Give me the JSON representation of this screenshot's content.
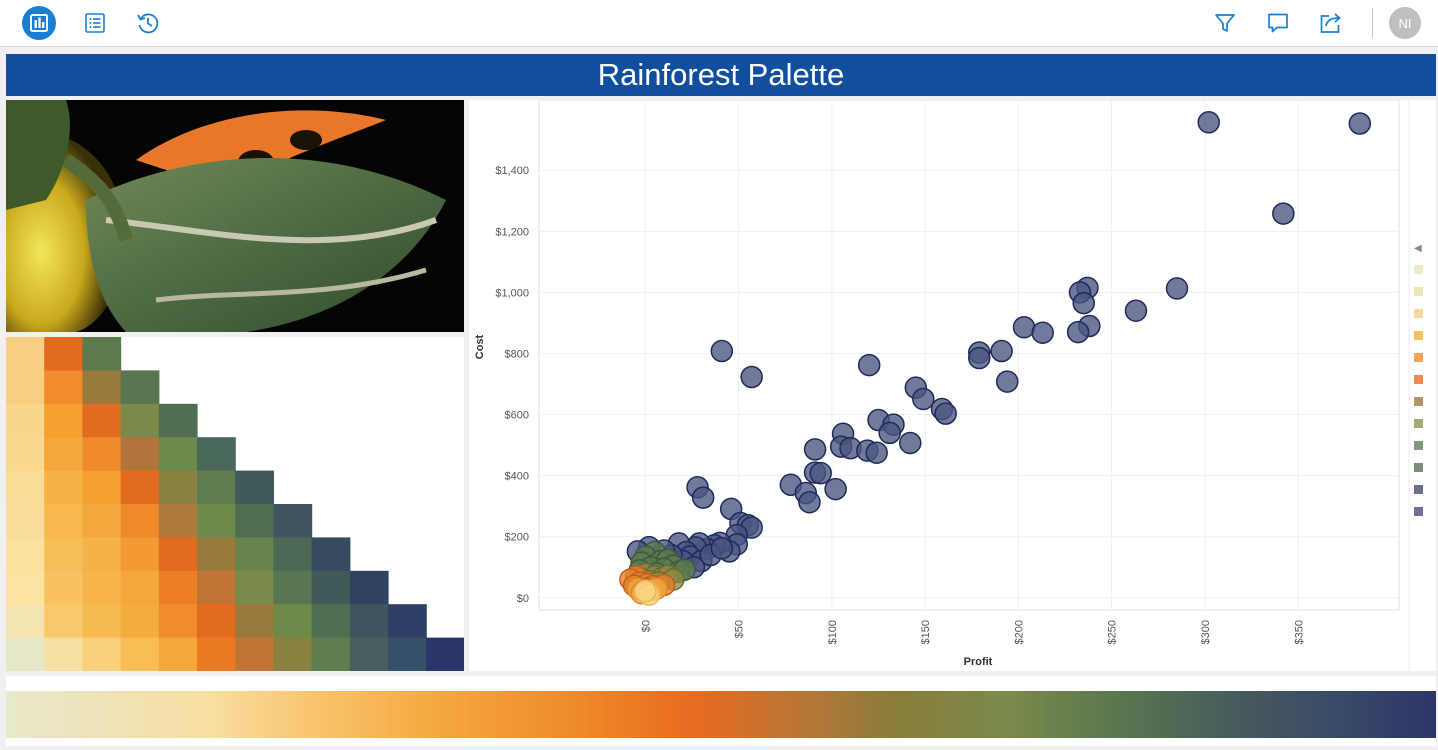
{
  "toolbar": {
    "user_initials": "NI"
  },
  "icons": {
    "dashboard": "bar-chart-icon",
    "list": "list-icon",
    "history": "history-icon",
    "filter": "filter-icon",
    "comment": "comment-icon",
    "share": "share-icon"
  },
  "colors": {
    "accent": "#1a7fd4",
    "title_bg": "#114f9e",
    "point_fill": "#4a5580",
    "point_stroke": "#1e2a5a"
  },
  "dashboard": {
    "title": "Rainforest Palette"
  },
  "heatmap": {
    "rows": [
      [
        "#f8cf80",
        "#e36b20",
        "#5c7a4c"
      ],
      [
        "#f8cf80",
        "#f08c2a",
        "#9a7a3c",
        "#587652"
      ],
      [
        "#f9d68d",
        "#f3a030",
        "#e36b20",
        "#7a8a4a",
        "#4f6e52"
      ],
      [
        "#f9d98f",
        "#f5a83a",
        "#ef8a2a",
        "#b2743a",
        "#6b8a4c",
        "#48685a"
      ],
      [
        "#fadc95",
        "#f6b147",
        "#f3a030",
        "#e36b20",
        "#8a8040",
        "#5f7e4f",
        "#3f5a58"
      ],
      [
        "#fbdd99",
        "#f7b850",
        "#f5a83a",
        "#ee8a2a",
        "#ae7a3a",
        "#6e8a4a",
        "#4f6e52",
        "#3f5660"
      ],
      [
        "#fbe19e",
        "#f7bd58",
        "#f6b147",
        "#f39a30",
        "#e36b20",
        "#9a7a3c",
        "#66844c",
        "#4b6a55",
        "#374a60"
      ],
      [
        "#fbe3a2",
        "#f8c35f",
        "#f6b44a",
        "#f5a83a",
        "#eb7e26",
        "#c07436",
        "#7a8a4a",
        "#587652",
        "#3f5a58",
        "#2f4260"
      ],
      [
        "#f4e4af",
        "#f9c86a",
        "#f7ba50",
        "#f6ac3c",
        "#f08c2a",
        "#e36b20",
        "#9a7a3c",
        "#6e8a4a",
        "#4f6e52",
        "#3f5660",
        "#2f3f66"
      ],
      [
        "#e6e6c8",
        "#f5dfa3",
        "#fad07a",
        "#f8bd55",
        "#f5a83a",
        "#ea7a24",
        "#c07436",
        "#8a8040",
        "#5f7e4f",
        "#475e5e",
        "#37506a",
        "#2b3668"
      ]
    ]
  },
  "legend": {
    "arrow": "◀",
    "swatches": [
      "#efeacb",
      "#ede6b8",
      "#f6dc98",
      "#f5c258",
      "#f2a653",
      "#ee8a4e",
      "#b99366",
      "#a6aa78",
      "#7f9a78",
      "#808d7c",
      "#6b7189",
      "#6b7398"
    ]
  },
  "chart_data": {
    "type": "scatter",
    "xlabel": "Profit",
    "ylabel": "Cost",
    "xlim": [
      -57,
      404
    ],
    "ylim": [
      -40,
      1630
    ],
    "x_ticks": [
      0,
      50,
      100,
      150,
      200,
      250,
      300,
      350
    ],
    "x_tick_labels": [
      "$0",
      "$50",
      "$100",
      "$150",
      "$200",
      "$250",
      "$300",
      "$350"
    ],
    "y_ticks": [
      0,
      200,
      400,
      600,
      800,
      1000,
      1200,
      1400
    ],
    "y_tick_labels": [
      "$0",
      "$200",
      "$400",
      "$600",
      "$800",
      "$1,000",
      "$1,200",
      "$1,400"
    ],
    "grid": true,
    "points": [
      {
        "x": 302,
        "y": 1557,
        "c": 0
      },
      {
        "x": 383,
        "y": 1553,
        "c": 0
      },
      {
        "x": 342,
        "y": 1258,
        "c": 0
      },
      {
        "x": 237,
        "y": 1015,
        "c": 0
      },
      {
        "x": 233,
        "y": 1000,
        "c": 0
      },
      {
        "x": 235,
        "y": 965,
        "c": 0
      },
      {
        "x": 285,
        "y": 1013,
        "c": 0
      },
      {
        "x": 263,
        "y": 940,
        "c": 0
      },
      {
        "x": 238,
        "y": 890,
        "c": 0
      },
      {
        "x": 232,
        "y": 870,
        "c": 0
      },
      {
        "x": 203,
        "y": 886,
        "c": 0
      },
      {
        "x": 213,
        "y": 868,
        "c": 0
      },
      {
        "x": 191,
        "y": 808,
        "c": 0
      },
      {
        "x": 179,
        "y": 803,
        "c": 0
      },
      {
        "x": 179,
        "y": 785,
        "c": 0
      },
      {
        "x": 194,
        "y": 708,
        "c": 0
      },
      {
        "x": 41,
        "y": 808,
        "c": 0
      },
      {
        "x": 57,
        "y": 723,
        "c": 0
      },
      {
        "x": 120,
        "y": 762,
        "c": 0
      },
      {
        "x": 145,
        "y": 688,
        "c": 0
      },
      {
        "x": 149,
        "y": 651,
        "c": 0
      },
      {
        "x": 159,
        "y": 618,
        "c": 0
      },
      {
        "x": 161,
        "y": 603,
        "c": 0
      },
      {
        "x": 125,
        "y": 582,
        "c": 0
      },
      {
        "x": 133,
        "y": 567,
        "c": 0
      },
      {
        "x": 131,
        "y": 540,
        "c": 0
      },
      {
        "x": 142,
        "y": 507,
        "c": 0
      },
      {
        "x": 106,
        "y": 537,
        "c": 0
      },
      {
        "x": 105,
        "y": 495,
        "c": 0
      },
      {
        "x": 110,
        "y": 490,
        "c": 0
      },
      {
        "x": 119,
        "y": 482,
        "c": 0
      },
      {
        "x": 124,
        "y": 475,
        "c": 0
      },
      {
        "x": 91,
        "y": 486,
        "c": 0
      },
      {
        "x": 91,
        "y": 410,
        "c": 0
      },
      {
        "x": 94,
        "y": 408,
        "c": 0
      },
      {
        "x": 102,
        "y": 356,
        "c": 0
      },
      {
        "x": 78,
        "y": 370,
        "c": 0
      },
      {
        "x": 86,
        "y": 343,
        "c": 0
      },
      {
        "x": 88,
        "y": 313,
        "c": 0
      },
      {
        "x": 28,
        "y": 362,
        "c": 0
      },
      {
        "x": 31,
        "y": 328,
        "c": 0
      },
      {
        "x": 46,
        "y": 291,
        "c": 0
      },
      {
        "x": 51,
        "y": 245,
        "c": 0
      },
      {
        "x": 55,
        "y": 238,
        "c": 0
      },
      {
        "x": 57,
        "y": 230,
        "c": 0
      },
      {
        "x": 49,
        "y": 205,
        "c": 0
      },
      {
        "x": 49,
        "y": 175,
        "c": 0
      },
      {
        "x": 45,
        "y": 152,
        "c": 0
      },
      {
        "x": 40,
        "y": 180,
        "c": 0
      },
      {
        "x": 37,
        "y": 172,
        "c": 0
      },
      {
        "x": 33,
        "y": 160,
        "c": 0
      },
      {
        "x": 29,
        "y": 178,
        "c": 0
      },
      {
        "x": 27,
        "y": 165,
        "c": 0
      },
      {
        "x": 18,
        "y": 178,
        "c": 0
      },
      {
        "x": 22,
        "y": 150,
        "c": 0
      },
      {
        "x": 24,
        "y": 135,
        "c": 0
      },
      {
        "x": 30,
        "y": 120,
        "c": 0
      },
      {
        "x": 35,
        "y": 140,
        "c": 0
      },
      {
        "x": 41,
        "y": 162,
        "c": 0
      },
      {
        "x": 20,
        "y": 120,
        "c": 0
      },
      {
        "x": 14,
        "y": 140,
        "c": 0
      },
      {
        "x": 10,
        "y": 155,
        "c": 0
      },
      {
        "x": 2,
        "y": 166,
        "c": 0
      },
      {
        "x": -4,
        "y": 152,
        "c": 0
      },
      {
        "x": 26,
        "y": 100,
        "c": 0
      },
      {
        "x": 5,
        "y": 150,
        "c": 1
      },
      {
        "x": 0,
        "y": 135,
        "c": 1
      },
      {
        "x": 8,
        "y": 120,
        "c": 1
      },
      {
        "x": 12,
        "y": 125,
        "c": 1
      },
      {
        "x": 15,
        "y": 105,
        "c": 1
      },
      {
        "x": -2,
        "y": 115,
        "c": 1
      },
      {
        "x": 3,
        "y": 100,
        "c": 1
      },
      {
        "x": 10,
        "y": 95,
        "c": 1
      },
      {
        "x": 18,
        "y": 85,
        "c": 1
      },
      {
        "x": 21,
        "y": 92,
        "c": 1
      },
      {
        "x": 6,
        "y": 80,
        "c": 1
      },
      {
        "x": -3,
        "y": 90,
        "c": 1
      },
      {
        "x": 0,
        "y": 78,
        "c": 2
      },
      {
        "x": 5,
        "y": 70,
        "c": 2
      },
      {
        "x": 9,
        "y": 65,
        "c": 2
      },
      {
        "x": 12,
        "y": 72,
        "c": 2
      },
      {
        "x": 15,
        "y": 60,
        "c": 2
      },
      {
        "x": -2,
        "y": 62,
        "c": 2
      },
      {
        "x": 2,
        "y": 55,
        "c": 2
      },
      {
        "x": 7,
        "y": 50,
        "c": 2
      },
      {
        "x": -5,
        "y": 70,
        "c": 3
      },
      {
        "x": -8,
        "y": 60,
        "c": 3
      },
      {
        "x": -3,
        "y": 50,
        "c": 3
      },
      {
        "x": 1,
        "y": 45,
        "c": 3
      },
      {
        "x": 4,
        "y": 38,
        "c": 3
      },
      {
        "x": 10,
        "y": 42,
        "c": 3
      },
      {
        "x": -6,
        "y": 40,
        "c": 3
      },
      {
        "x": 0,
        "y": 30,
        "c": 3
      },
      {
        "x": -4,
        "y": 30,
        "c": 4
      },
      {
        "x": -1,
        "y": 22,
        "c": 4
      },
      {
        "x": 3,
        "y": 25,
        "c": 4
      },
      {
        "x": 6,
        "y": 30,
        "c": 4
      },
      {
        "x": -2,
        "y": 15,
        "c": 4
      },
      {
        "x": 0,
        "y": 18,
        "c": 5
      },
      {
        "x": 2,
        "y": 10,
        "c": 5
      },
      {
        "x": 0,
        "y": 22,
        "c": 5
      }
    ],
    "point_color_groups": [
      {
        "fill": "#4a5580",
        "stroke": "#1e2a5a"
      },
      {
        "fill": "#5b7a4e",
        "stroke": "#3c5a3a"
      },
      {
        "fill": "#8c8a48",
        "stroke": "#6b6a30"
      },
      {
        "fill": "#e8802a",
        "stroke": "#c0601a"
      },
      {
        "fill": "#f5a840",
        "stroke": "#d88a28"
      },
      {
        "fill": "#f8d37f",
        "stroke": "#e6b860"
      }
    ]
  }
}
